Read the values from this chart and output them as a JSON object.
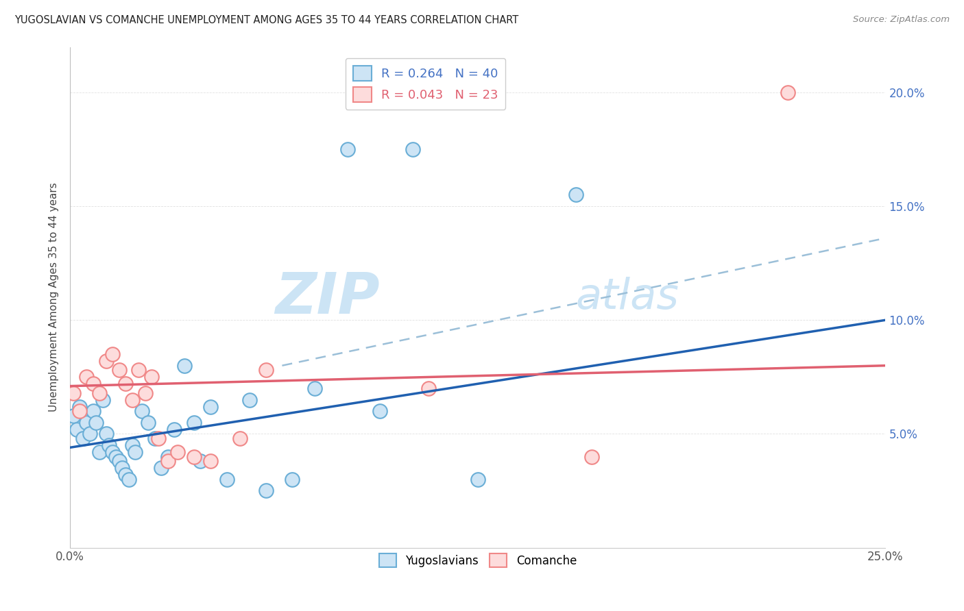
{
  "title": "YUGOSLAVIAN VS COMANCHE UNEMPLOYMENT AMONG AGES 35 TO 44 YEARS CORRELATION CHART",
  "source": "Source: ZipAtlas.com",
  "ylabel": "Unemployment Among Ages 35 to 44 years",
  "xlim": [
    0,
    0.25
  ],
  "ylim": [
    0,
    0.22
  ],
  "xticks": [
    0.0,
    0.05,
    0.1,
    0.15,
    0.2,
    0.25
  ],
  "yticks": [
    0.0,
    0.05,
    0.1,
    0.15,
    0.2
  ],
  "ytick_labels": [
    "",
    "5.0%",
    "10.0%",
    "15.0%",
    "20.0%"
  ],
  "xtick_labels": [
    "0.0%",
    "",
    "",
    "",
    "",
    "25.0%"
  ],
  "yugoslavians_x": [
    0.001,
    0.002,
    0.003,
    0.004,
    0.005,
    0.006,
    0.007,
    0.008,
    0.009,
    0.01,
    0.011,
    0.012,
    0.013,
    0.014,
    0.015,
    0.016,
    0.017,
    0.018,
    0.019,
    0.02,
    0.022,
    0.024,
    0.026,
    0.028,
    0.03,
    0.032,
    0.035,
    0.038,
    0.04,
    0.043,
    0.048,
    0.055,
    0.06,
    0.068,
    0.075,
    0.085,
    0.095,
    0.105,
    0.125,
    0.155
  ],
  "yugoslavians_y": [
    0.058,
    0.052,
    0.062,
    0.048,
    0.055,
    0.05,
    0.06,
    0.055,
    0.042,
    0.065,
    0.05,
    0.045,
    0.042,
    0.04,
    0.038,
    0.035,
    0.032,
    0.03,
    0.045,
    0.042,
    0.06,
    0.055,
    0.048,
    0.035,
    0.04,
    0.052,
    0.08,
    0.055,
    0.038,
    0.062,
    0.03,
    0.065,
    0.025,
    0.03,
    0.07,
    0.175,
    0.06,
    0.175,
    0.03,
    0.155
  ],
  "comanche_x": [
    0.001,
    0.003,
    0.005,
    0.007,
    0.009,
    0.011,
    0.013,
    0.015,
    0.017,
    0.019,
    0.021,
    0.023,
    0.025,
    0.027,
    0.03,
    0.033,
    0.038,
    0.043,
    0.052,
    0.06,
    0.11,
    0.16,
    0.22
  ],
  "comanche_y": [
    0.068,
    0.06,
    0.075,
    0.072,
    0.068,
    0.082,
    0.085,
    0.078,
    0.072,
    0.065,
    0.078,
    0.068,
    0.075,
    0.048,
    0.038,
    0.042,
    0.04,
    0.038,
    0.048,
    0.078,
    0.07,
    0.04,
    0.2
  ],
  "yugo_R": 0.264,
  "yugo_N": 40,
  "como_R": 0.043,
  "como_N": 23,
  "yugo_line_start_y": 0.044,
  "yugo_line_end_y": 0.1,
  "como_line_start_y": 0.071,
  "como_line_end_y": 0.08,
  "dash_line_x1": 0.065,
  "dash_line_y1": 0.08,
  "dash_line_x2": 0.25,
  "dash_line_y2": 0.136,
  "blue_scatter_face": "#cde4f5",
  "blue_scatter_edge": "#6aaed6",
  "pink_scatter_face": "#fddcdc",
  "pink_scatter_edge": "#f08888",
  "blue_line_color": "#2060b0",
  "pink_line_color": "#e06070",
  "dash_line_color": "#9bbfd8",
  "grid_color": "#e0e0e0",
  "background_color": "#ffffff",
  "watermark_color": "#cce4f5",
  "right_tick_color": "#4472c4"
}
